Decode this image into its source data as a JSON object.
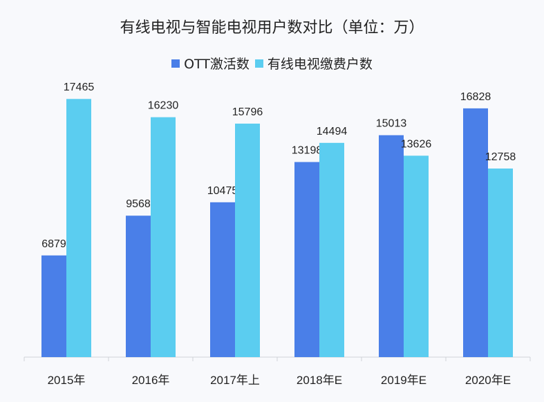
{
  "chart_data": {
    "type": "bar",
    "title": "有线电视与智能电视用户数对比（单位：万）",
    "categories": [
      "2015年",
      "2016年",
      "2017年上",
      "2018年E",
      "2019年E",
      "2020年E"
    ],
    "series": [
      {
        "name": "OTT激活数",
        "color": "#4a7fe8",
        "values": [
          6879,
          9568,
          10475,
          13198,
          15013,
          16828
        ]
      },
      {
        "name": "有线电视缴费户数",
        "color": "#5bcdf0",
        "values": [
          17465,
          16230,
          15796,
          14494,
          13626,
          12758
        ]
      }
    ],
    "ylim": [
      0,
      20000
    ],
    "grid": false,
    "legend": "top",
    "data_labels": true
  }
}
